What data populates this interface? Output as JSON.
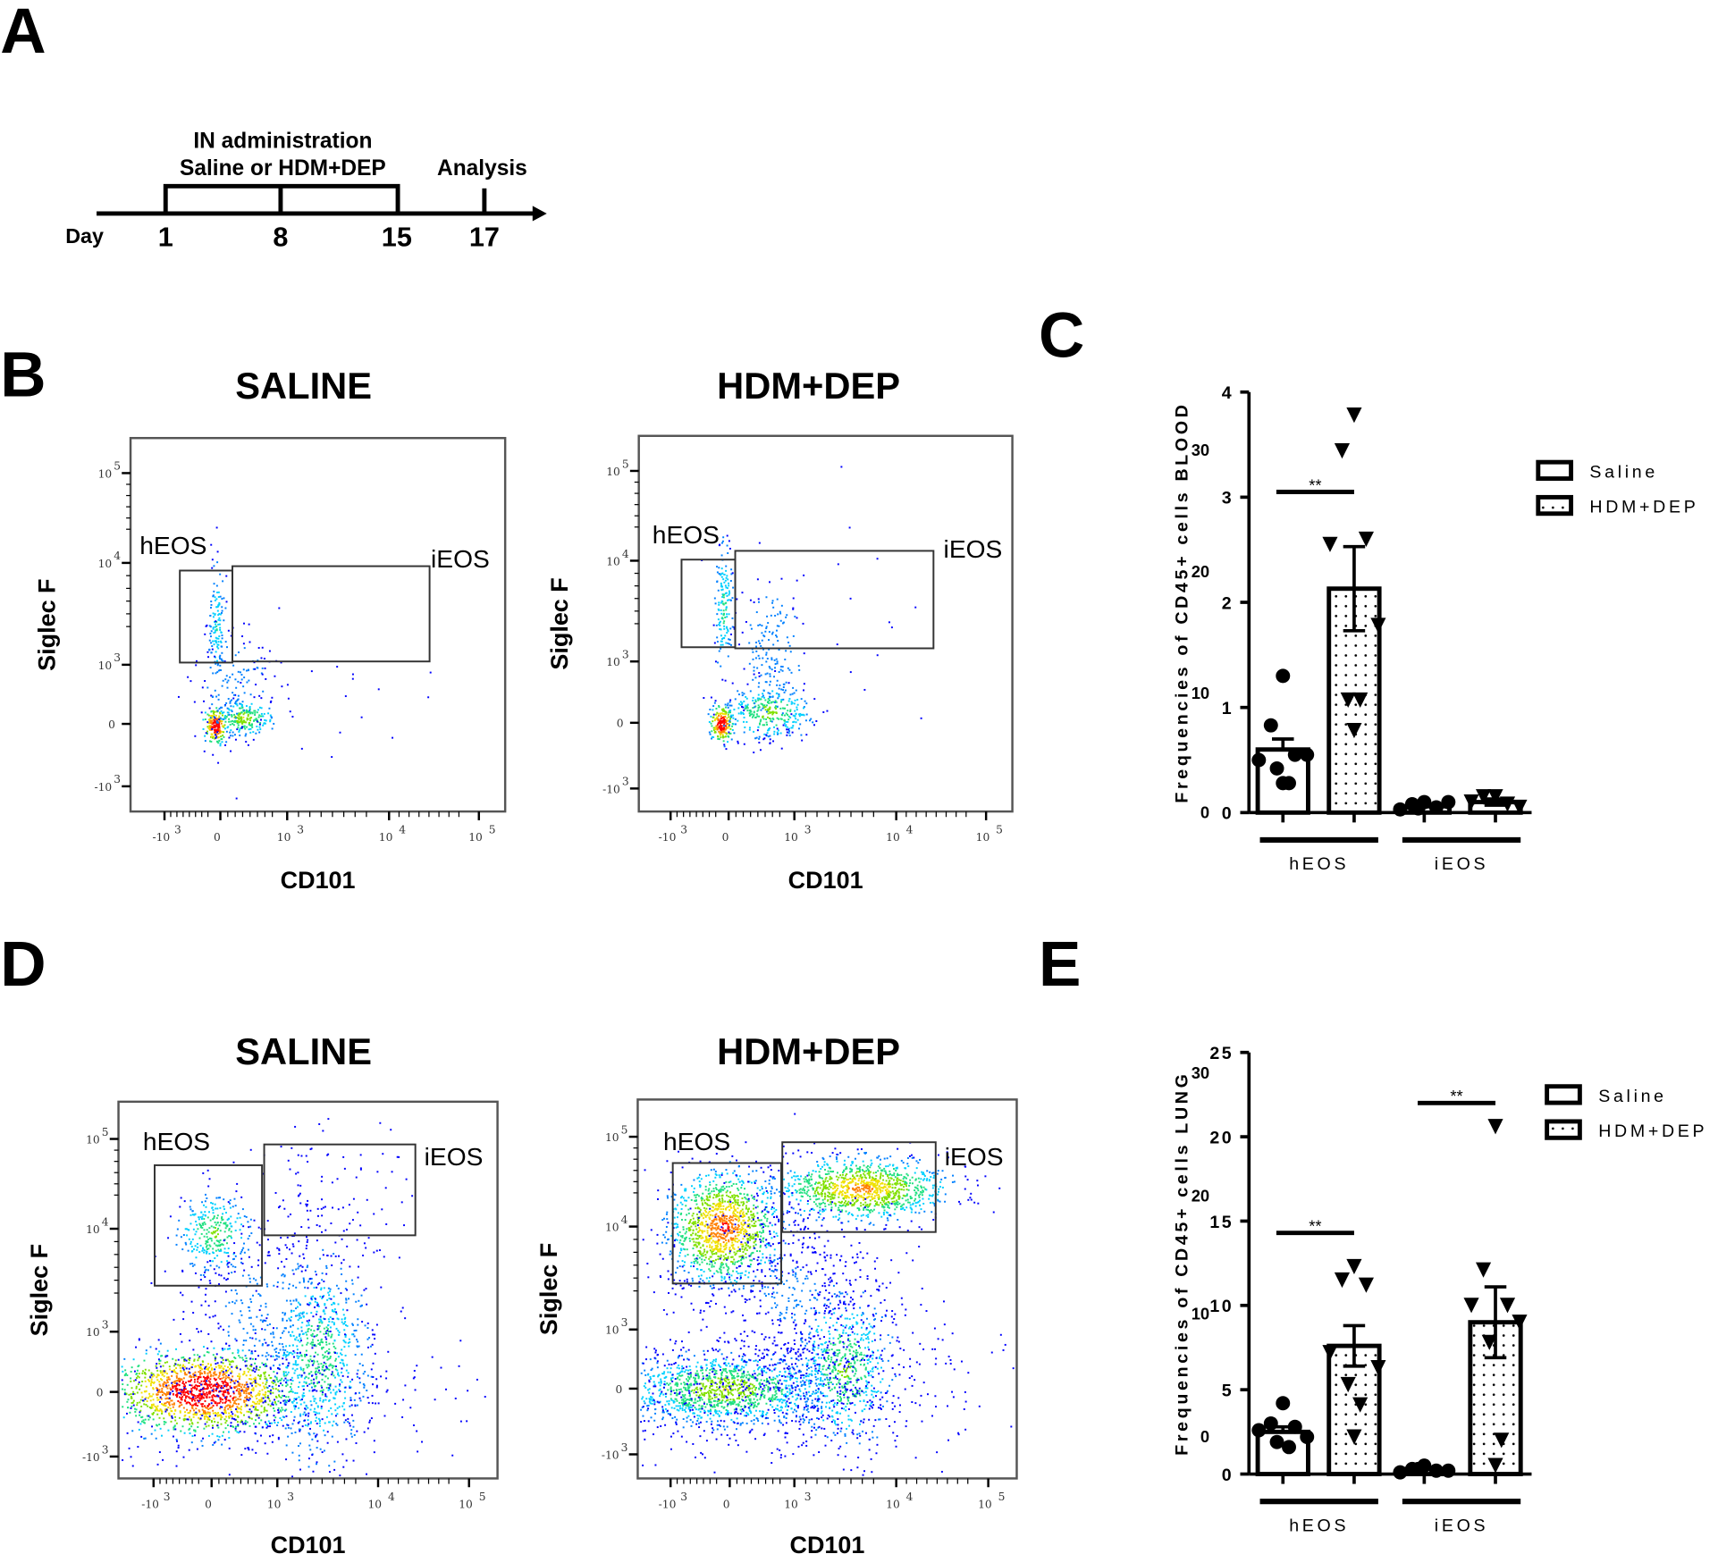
{
  "panel_letters": {
    "a": "A",
    "b": "B",
    "c": "C",
    "d": "D",
    "e": "E"
  },
  "timeline": {
    "header_line1": "IN administration",
    "header_line2": "Saline or HDM+DEP",
    "analysis": "Analysis",
    "day_label": "Day",
    "days": [
      "1",
      "8",
      "15",
      "17"
    ]
  },
  "flow_plots": {
    "y_ticks": [
      "10",
      "10",
      "10",
      "0",
      "-10"
    ],
    "y_exp": [
      "5",
      "4",
      "3",
      "",
      "3"
    ],
    "x_ticks": [
      "-10",
      "0",
      "10",
      "10",
      "10"
    ],
    "x_exp": [
      "3",
      "",
      "3",
      "4",
      "5"
    ],
    "xlabel": "CD101",
    "ylabel": "Siglec F",
    "gate_heos": "hEOS",
    "gate_ieos": "iEOS",
    "b_saline_title": "SALINE",
    "b_hdm_title": "HDM+DEP",
    "d_saline_title": "SALINE",
    "d_hdm_title": "HDM+DEP"
  },
  "chart_data": [
    {
      "type": "bar",
      "panel": "C",
      "ylabel": "Frequencies of CD45+ cells BLOOD",
      "ylim": [
        0,
        4
      ],
      "yticks": [
        "0",
        "1",
        "2",
        "3",
        "4"
      ],
      "ghost_ticks": [
        "30",
        "20",
        "10",
        "0"
      ],
      "categories": [
        "hEOS",
        "iEOS"
      ],
      "series": [
        {
          "name": "Saline",
          "marker": "circle",
          "means": [
            0.6,
            0.06
          ],
          "sem": [
            0.1,
            0.02
          ],
          "points": [
            [
              1.3,
              0.83,
              0.55,
              0.5,
              0.55,
              0.42,
              0.28,
              0.28
            ],
            [
              0.1,
              0.08,
              0.05,
              0.03,
              0.1,
              0.04
            ]
          ]
        },
        {
          "name": "HDM+DEP",
          "marker": "triangle-down",
          "means": [
            2.13,
            0.1
          ],
          "sem": [
            0.4,
            0.03
          ],
          "points": [
            [
              3.78,
              3.44,
              2.6,
              2.55,
              1.78,
              1.07,
              1.07,
              0.78
            ],
            [
              0.15,
              0.15,
              0.08,
              0.1,
              0.05
            ]
          ]
        }
      ],
      "significance": [
        {
          "group": "hEOS",
          "label": "**",
          "y": 3.05
        }
      ]
    },
    {
      "type": "bar",
      "panel": "E",
      "ylabel": "Frequencies of CD45+ cells LUNG",
      "ylim": [
        0,
        25
      ],
      "yticks": [
        "0",
        "5",
        "10",
        "15",
        "20",
        "25"
      ],
      "ghost_ticks": [
        "30",
        "20",
        "10",
        "0"
      ],
      "categories": [
        "hEOS",
        "iEOS"
      ],
      "series": [
        {
          "name": "Saline",
          "marker": "circle",
          "means": [
            2.5,
            0.3
          ],
          "sem": [
            0.3,
            0.1
          ],
          "points": [
            [
              4.2,
              3.0,
              2.8,
              2.6,
              2.2,
              1.9,
              1.6
            ],
            [
              0.5,
              0.3,
              0.2,
              0.1,
              0.2,
              0.3
            ]
          ]
        },
        {
          "name": "HDM+DEP",
          "marker": "triangle-down",
          "means": [
            7.6,
            9.0
          ],
          "sem": [
            1.2,
            2.1
          ],
          "points": [
            [
              12.3,
              11.5,
              11.2,
              7.2,
              6.3,
              5.3,
              4.1,
              2.2
            ],
            [
              20.6,
              12.1,
              10.0,
              10.0,
              9.0,
              7.8,
              2.0,
              0.5
            ]
          ]
        }
      ],
      "significance": [
        {
          "group": "hEOS",
          "label": "**",
          "y": 14.3
        },
        {
          "group": "iEOS",
          "label": "**",
          "y": 22
        }
      ]
    }
  ]
}
